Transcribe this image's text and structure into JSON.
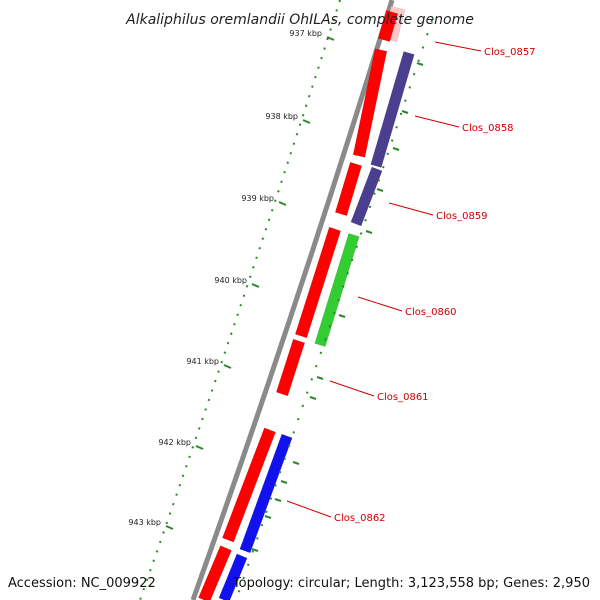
{
  "title": "Alkaliphilus oremlandii OhILAs, complete genome",
  "accession": "Accession: NC_009922",
  "summary": "Topology: circular; Length: 3,123,558 bp; Genes: 2,950",
  "colors": {
    "backbone": "#8a8a8a",
    "cds_forward": "#ff0000",
    "cds_faded": "#ffc8c8",
    "gene_purple": "#4a3f8f",
    "gene_green": "#33cc33",
    "gene_blue": "#1111ee",
    "tick": "#2a8a2a",
    "label": "#cc0000"
  },
  "scale_ticks": [
    {
      "kbp": 937,
      "label": "937 kbp"
    },
    {
      "kbp": 938,
      "label": "938 kbp"
    },
    {
      "kbp": 939,
      "label": "939 kbp"
    },
    {
      "kbp": 940,
      "label": "940 kbp"
    },
    {
      "kbp": 941,
      "label": "941 kbp"
    },
    {
      "kbp": 942,
      "label": "942 kbp"
    },
    {
      "kbp": 943,
      "label": "943 kbp"
    }
  ],
  "genes": [
    {
      "name": "Clos_0857"
    },
    {
      "name": "Clos_0858"
    },
    {
      "name": "Clos_0859"
    },
    {
      "name": "Clos_0860"
    },
    {
      "name": "Clos_0861"
    },
    {
      "name": "Clos_0862"
    }
  ]
}
